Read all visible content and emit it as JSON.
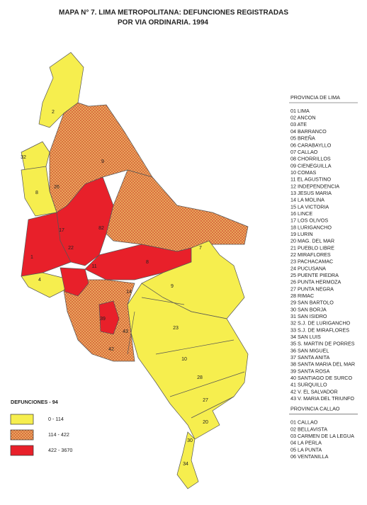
{
  "title": [
    "MAPA N° 7.  LIMA METROPOLITANA: DEFUNCIONES REGISTRADAS",
    "POR VIA ORDINARIA.  1994"
  ],
  "legend": {
    "title": "DEFUNCIONES - 94",
    "items": [
      {
        "label": "0   -   114",
        "color": "#f6ee4e"
      },
      {
        "label": "114   -   422",
        "color": "#eab060"
      },
      {
        "label": "422   -   3670",
        "color": "#e8202a"
      }
    ]
  },
  "map_labels": [
    "2",
    "32",
    "9",
    "8",
    "26",
    "82",
    "17",
    "22",
    "1",
    "7",
    "8",
    "9",
    "23",
    "10",
    "28",
    "27",
    "20",
    "30",
    "34",
    "43",
    "42",
    "39",
    "4",
    "14",
    "11"
  ],
  "provinces": [
    {
      "name": "PROVINCIA DE LIMA",
      "districts": [
        "01  LIMA",
        "02  ANCON",
        "03  ATE",
        "04  BARRANCO",
        "05  BREÑA",
        "06  CARABAYLLO",
        "07  CALLAO",
        "08  CHORRILLOS",
        "09  CIENEGUILLA",
        "10  COMAS",
        "11  EL AGUSTINO",
        "12  INDEPENDENCIA",
        "13  JESUS MARIA",
        "14  LA MOLINA",
        "15  LA VICTORIA",
        "16  LINCE",
        "17  LOS OLIVOS",
        "18  LURIGANCHO",
        "19  LURIN",
        "20  MAG. DEL MAR",
        "21  PUEBLO LIBRE",
        "22  MIRAFLORES",
        "23  PACHACAMAC",
        "24  PUCUSANA",
        "25  PUENTE PIEDRA",
        "26  PUNTA HERMOZA",
        "27  PUNTA NEGRA",
        "28  RIMAC",
        "29  SAN BARTOLO",
        "30  SAN BORJA",
        "31  SAN ISIDRO",
        "32  S.J. DE LURIGANCHO",
        "33  S.J. DE MIRAFLORES",
        "34  SAN LUIS",
        "35  S. MARTIN DE PORRES",
        "36  SAN MIGUEL",
        "37  SANTA ANITA",
        "38  SANTA MARIA DEL MAR",
        "39  SANTA ROSA",
        "40  SANTIAGO DE SURCO",
        "41  SURQUILLO",
        "42  V. EL SALVADOR",
        "43  V. MARIA DEL TRIUNFO"
      ]
    },
    {
      "name": "PROVINCIA CALLAO",
      "districts": [
        "01  CALLAO",
        "02  BELLAVISTA",
        "03  CARMEN  DE LA LEGUA",
        "04  LA PERLA",
        "05  LA PUNTA",
        "06  VENTANILLA"
      ]
    }
  ]
}
